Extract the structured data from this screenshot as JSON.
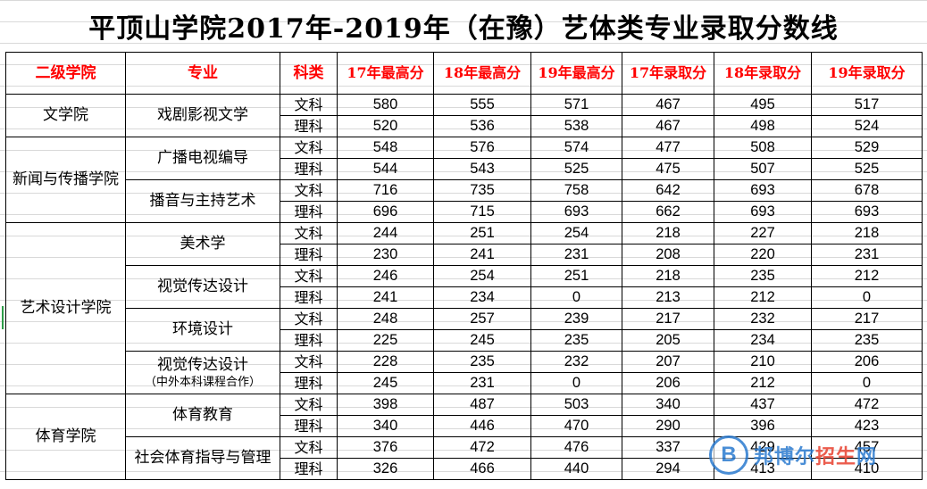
{
  "title": "平顶山学院2017年-2019年（在豫）艺体类专业录取分数线",
  "headers": [
    "二级学院",
    "专业",
    "科类",
    "17年最高分",
    "18年最高分",
    "19年最高分",
    "17年录取分",
    "18年录取分",
    "19年录取分"
  ],
  "colors": {
    "header_text": "#ff0000",
    "watermark_blue": "#2b7bd0",
    "watermark_red": "#e8402f"
  },
  "rows": [
    {
      "college": "文学院",
      "major": "戏剧影视文学",
      "major_sub": "",
      "track": "文科",
      "v": [
        "580",
        "555",
        "571",
        "467",
        "495",
        "517"
      ]
    },
    {
      "track": "理科",
      "v": [
        "520",
        "536",
        "538",
        "467",
        "498",
        "524"
      ]
    },
    {
      "college": "新闻与传播学院",
      "major": "广播电视编导",
      "major_sub": "",
      "track": "文科",
      "v": [
        "548",
        "576",
        "574",
        "477",
        "508",
        "529"
      ]
    },
    {
      "track": "理科",
      "v": [
        "544",
        "543",
        "525",
        "475",
        "507",
        "525"
      ]
    },
    {
      "major": "播音与主持艺术",
      "major_sub": "",
      "track": "文科",
      "v": [
        "716",
        "735",
        "758",
        "642",
        "693",
        "678"
      ]
    },
    {
      "track": "理科",
      "v": [
        "696",
        "715",
        "693",
        "662",
        "693",
        "693"
      ]
    },
    {
      "college": "艺术设计学院",
      "major": "美术学",
      "major_sub": "",
      "track": "文科",
      "v": [
        "244",
        "251",
        "254",
        "218",
        "227",
        "218"
      ]
    },
    {
      "track": "理科",
      "v": [
        "230",
        "241",
        "231",
        "208",
        "220",
        "231"
      ]
    },
    {
      "major": "视觉传达设计",
      "major_sub": "",
      "track": "文科",
      "v": [
        "246",
        "254",
        "251",
        "218",
        "235",
        "212"
      ]
    },
    {
      "track": "理科",
      "v": [
        "241",
        "234",
        "0",
        "213",
        "212",
        "0"
      ]
    },
    {
      "major": "环境设计",
      "major_sub": "",
      "track": "文科",
      "v": [
        "248",
        "257",
        "239",
        "217",
        "232",
        "217"
      ]
    },
    {
      "track": "理科",
      "v": [
        "225",
        "245",
        "235",
        "205",
        "234",
        "235"
      ]
    },
    {
      "major": "视觉传达设计",
      "major_sub": "（中外本科课程合作）",
      "track": "文科",
      "v": [
        "228",
        "235",
        "232",
        "207",
        "210",
        "206"
      ]
    },
    {
      "track": "理科",
      "v": [
        "245",
        "231",
        "0",
        "206",
        "212",
        "0"
      ]
    },
    {
      "college": "体育学院",
      "major": "体育教育",
      "major_sub": "",
      "track": "文科",
      "v": [
        "398",
        "487",
        "503",
        "340",
        "437",
        "472"
      ]
    },
    {
      "track": "理科",
      "v": [
        "340",
        "446",
        "470",
        "290",
        "396",
        "423"
      ]
    },
    {
      "major": "社会体育指导与管理",
      "major_sub": "",
      "track": "文科",
      "v": [
        "376",
        "472",
        "476",
        "337",
        "429",
        "457"
      ]
    },
    {
      "track": "理科",
      "v": [
        "326",
        "466",
        "440",
        "294",
        "413",
        "410"
      ]
    }
  ],
  "watermark": {
    "logo_letter": "B",
    "text_a": "邦博尔",
    "text_b": "招生",
    "text_c": "网"
  }
}
